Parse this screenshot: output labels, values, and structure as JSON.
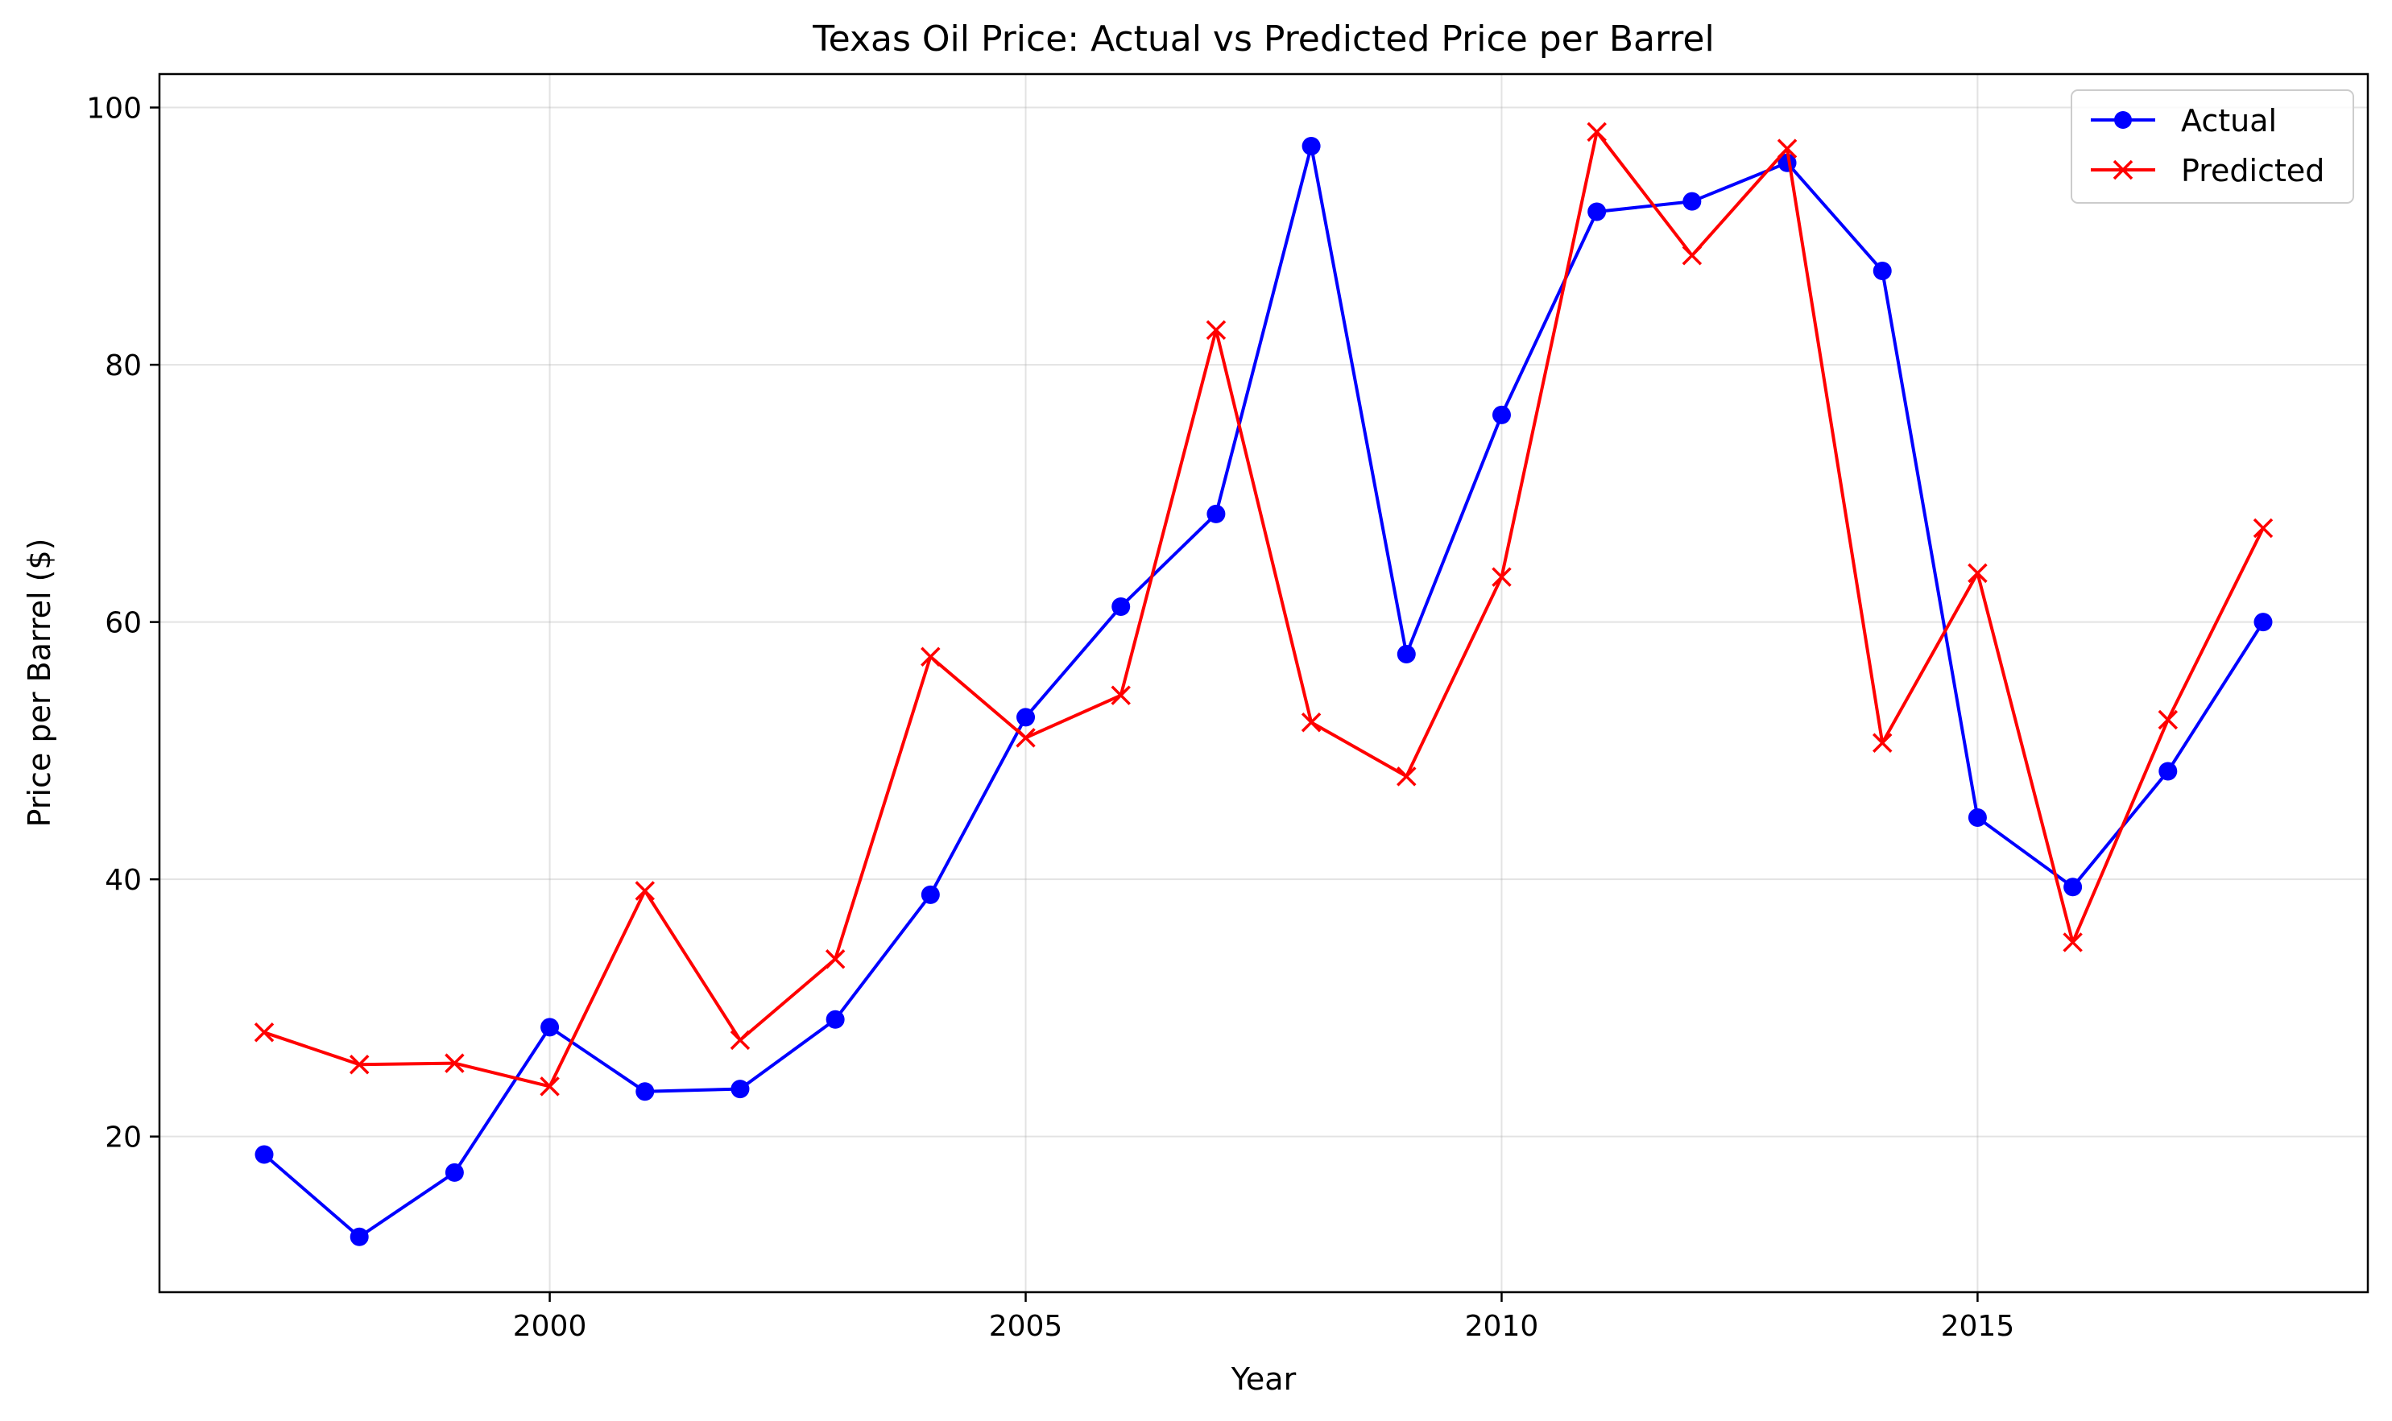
{
  "chart_data": {
    "type": "line",
    "title": "Texas Oil Price: Actual vs Predicted Price per Barrel",
    "xlabel": "Year",
    "ylabel": "Price per Barrel ($)",
    "xlim": [
      1995.9,
      2019.1
    ],
    "ylim": [
      7.9,
      102.6
    ],
    "x_ticks": [
      2000,
      2005,
      2010,
      2015
    ],
    "y_ticks": [
      20,
      40,
      60,
      80,
      100
    ],
    "grid": true,
    "legend_position": "top-right",
    "x": [
      1997,
      1998,
      1999,
      2000,
      2001,
      2002,
      2003,
      2004,
      2005,
      2006,
      2007,
      2008,
      2009,
      2010,
      2011,
      2012,
      2013,
      2014,
      2015,
      2016,
      2017,
      2018
    ],
    "series": [
      {
        "name": "Actual",
        "color": "#0000ff",
        "marker": "circle",
        "values": [
          18.6,
          12.2,
          17.2,
          28.5,
          23.5,
          23.7,
          29.1,
          38.8,
          52.6,
          61.2,
          68.4,
          97.0,
          57.5,
          76.1,
          91.9,
          92.7,
          95.7,
          87.3,
          44.8,
          39.4,
          48.4,
          60.0
        ]
      },
      {
        "name": "Predicted",
        "color": "#ff0000",
        "marker": "x",
        "values": [
          28.1,
          25.6,
          25.7,
          23.9,
          39.1,
          27.5,
          33.8,
          57.3,
          51.0,
          54.3,
          82.7,
          52.2,
          48.0,
          63.5,
          98.1,
          88.5,
          96.8,
          50.6,
          63.8,
          35.1,
          52.4,
          67.3
        ]
      }
    ]
  }
}
